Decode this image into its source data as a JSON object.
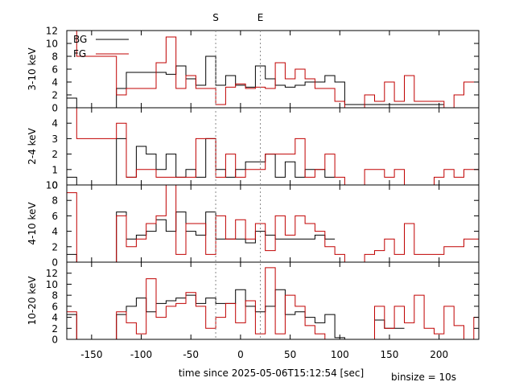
{
  "chart_data": {
    "type": "line",
    "title": "",
    "xlabel": "time since 2025-05-06T15:12:54 [sec]",
    "binsize_label": "binsize = 10s",
    "markers": [
      {
        "label": "S",
        "x": -25
      },
      {
        "label": "E",
        "x": 20
      }
    ],
    "xlim": [
      -175,
      240
    ],
    "xticks": [
      -150,
      -100,
      -50,
      0,
      50,
      100,
      150,
      200
    ],
    "legend": {
      "placement": "top-left",
      "entries": [
        "BG",
        "FG"
      ]
    },
    "colors": {
      "BG": "#000000",
      "FG": "#c00000"
    },
    "panels": [
      {
        "ylabel": "3-10 keV",
        "ylim": [
          0,
          12
        ],
        "yticks": [
          0,
          2,
          4,
          6,
          8,
          10,
          12
        ],
        "series": [
          {
            "name": "BG",
            "edges": [
              -175,
              -165,
              -125,
              -115,
              -105,
              -75,
              -65,
              -55,
              -45,
              -35,
              -25,
              -15,
              -5,
              5,
              15,
              25,
              35,
              45,
              55,
              65,
              75,
              85,
              95,
              105,
              205
            ],
            "values": [
              1.5,
              0,
              3,
              5.5,
              5.5,
              5.2,
              6.5,
              4.5,
              3.5,
              8,
              3.5,
              5,
              3.5,
              3.2,
              6.5,
              4.5,
              3.5,
              3.2,
              3.5,
              4,
              4,
              5,
              4,
              0.5
            ]
          },
          {
            "name": "FG",
            "edges": [
              -175,
              -165,
              -125,
              -115,
              -105,
              -85,
              -75,
              -65,
              -55,
              -45,
              -35,
              -25,
              -15,
              -5,
              5,
              15,
              25,
              35,
              45,
              55,
              65,
              75,
              85,
              95,
              105,
              125,
              135,
              145,
              155,
              165,
              175,
              185,
              205,
              215,
              225,
              235,
              240
            ],
            "values": [
              12,
              8,
              2,
              3,
              3,
              7,
              11,
              3,
              5,
              3,
              3,
              0.5,
              3.2,
              3.7,
              3,
              3.2,
              3,
              7,
              4.5,
              6,
              4.5,
              3,
              3,
              1,
              0,
              2,
              1,
              4,
              1,
              5,
              1,
              1,
              0,
              2,
              4,
              4,
              4
            ]
          }
        ]
      },
      {
        "ylabel": "2-4 keV",
        "ylim": [
          0,
          5
        ],
        "yticks": [
          0,
          1,
          2,
          3,
          4
        ],
        "series": [
          {
            "name": "BG",
            "edges": [
              -175,
              -165,
              -125,
              -115,
              -105,
              -95,
              -85,
              -75,
              -65,
              -55,
              -45,
              -35,
              -25,
              -15,
              -5,
              5,
              15,
              25,
              35,
              45,
              55,
              65,
              75,
              85,
              95
            ],
            "values": [
              0.5,
              0,
              3,
              0.5,
              2.5,
              2,
              1,
              2,
              0.5,
              1,
              0.5,
              3,
              1,
              0.5,
              1,
              1.5,
              1.5,
              2,
              0.5,
              1.5,
              0.5,
              1,
              1,
              0.5
            ]
          },
          {
            "name": "FG",
            "edges": [
              -175,
              -165,
              -125,
              -115,
              -105,
              -85,
              -75,
              -45,
              -35,
              -25,
              -15,
              -5,
              5,
              25,
              45,
              55,
              65,
              75,
              85,
              95,
              105,
              125,
              135,
              145,
              155,
              165,
              195,
              205,
              215,
              225,
              235,
              240
            ],
            "values": [
              5,
              3,
              4,
              0.5,
              1,
              0.5,
              0.5,
              3,
              3,
              0.5,
              2,
              0.5,
              1,
              2,
              2,
              3,
              0.5,
              1,
              2,
              0.5,
              0,
              1,
              1,
              0.5,
              1,
              0,
              0.5,
              1,
              0.5,
              1,
              1,
              1
            ]
          }
        ]
      },
      {
        "ylabel": "4-10 keV",
        "ylim": [
          0,
          10
        ],
        "yticks": [
          0,
          2,
          4,
          6,
          8,
          10
        ],
        "series": [
          {
            "name": "BG",
            "edges": [
              -175,
              -165,
              -125,
              -115,
              -105,
              -95,
              -85,
              -75,
              -65,
              -55,
              -45,
              -35,
              -25,
              -15,
              -5,
              5,
              15,
              25,
              35,
              45,
              55,
              65,
              75,
              85,
              95
            ],
            "values": [
              1,
              0,
              6.5,
              3,
              3.5,
              4,
              5.5,
              4,
              6.5,
              4,
              3.5,
              6.5,
              3,
              3,
              3,
              2.5,
              4,
              3.5,
              3,
              3,
              3,
              3,
              3.5,
              3
            ]
          },
          {
            "name": "FG",
            "edges": [
              -175,
              -165,
              -125,
              -115,
              -105,
              -95,
              -85,
              -75,
              -65,
              -55,
              -45,
              -35,
              -25,
              -15,
              -5,
              5,
              15,
              25,
              35,
              45,
              55,
              65,
              75,
              85,
              95,
              105,
              125,
              135,
              145,
              155,
              165,
              175,
              185,
              205,
              225,
              240
            ],
            "values": [
              9,
              0,
              6,
              2,
              3,
              5,
              6,
              10,
              1,
              5,
              5,
              1,
              6,
              3,
              5.5,
              3,
              5,
              1.5,
              6,
              3.5,
              6,
              5,
              4,
              2,
              1,
              0,
              1,
              1.5,
              3,
              1,
              5,
              1,
              1,
              2,
              3,
              3
            ]
          }
        ]
      },
      {
        "ylabel": "10-20 keV",
        "ylim": [
          0,
          14
        ],
        "yticks": [
          0,
          2,
          4,
          6,
          8,
          10,
          12
        ],
        "series": [
          {
            "name": "BG",
            "edges": [
              -175,
              -165,
              -125,
              -115,
              -105,
              -95,
              -85,
              -75,
              -65,
              -55,
              -45,
              -35,
              -25,
              -15,
              -5,
              5,
              15,
              25,
              35,
              45,
              55,
              65,
              75,
              85,
              95,
              105,
              135,
              145,
              155,
              165
            ],
            "values": [
              4.5,
              0,
              4.5,
              6,
              7.5,
              5,
              6.5,
              7,
              7.5,
              8,
              6.5,
              7.5,
              6.5,
              6.5,
              9,
              6,
              5,
              6,
              9,
              4.5,
              5,
              4,
              3,
              4.5,
              0.3,
              0,
              3.5,
              2,
              2
            ]
          },
          {
            "name": "FG",
            "edges": [
              -175,
              -165,
              -125,
              -115,
              -105,
              -95,
              -85,
              -75,
              -65,
              -55,
              -45,
              -35,
              -25,
              -15,
              -5,
              5,
              15,
              25,
              35,
              45,
              55,
              65,
              75,
              85,
              95,
              105,
              135,
              145,
              155,
              165,
              175,
              185,
              195,
              205,
              215,
              225,
              235,
              240
            ],
            "values": [
              5,
              0,
              5,
              3,
              1,
              11,
              4,
              6,
              6.5,
              8.5,
              6,
              2,
              4,
              6.5,
              3,
              7,
              1,
              13,
              1,
              8,
              6,
              2.5,
              1,
              0,
              0,
              0,
              6,
              2,
              6,
              3,
              8,
              2,
              1,
              6,
              2.5,
              0,
              4,
              4
            ]
          }
        ]
      }
    ]
  }
}
